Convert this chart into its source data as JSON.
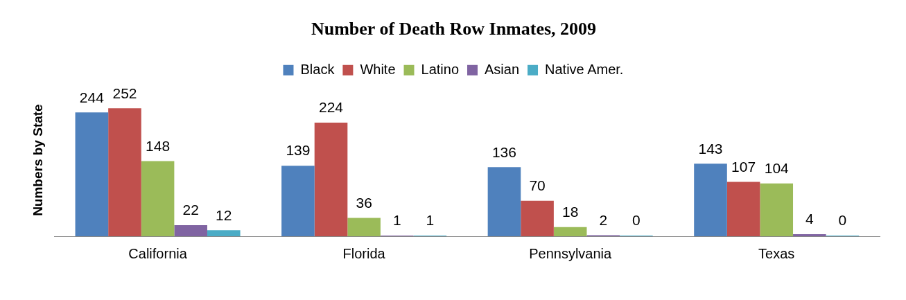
{
  "chart_data": {
    "type": "bar",
    "title": "Number of Death Row Inmates, 2009",
    "ylabel": "Numbers by State",
    "categories": [
      "California",
      "Florida",
      "Pennsylvania",
      "Texas"
    ],
    "series": [
      {
        "name": "Black",
        "color": "#4f81bd",
        "values": [
          244,
          139,
          136,
          143
        ]
      },
      {
        "name": "White",
        "color": "#c0504d",
        "values": [
          252,
          224,
          70,
          107
        ]
      },
      {
        "name": "Latino",
        "color": "#9bbb59",
        "values": [
          148,
          36,
          18,
          104
        ]
      },
      {
        "name": "Asian",
        "color": "#8064a2",
        "values": [
          22,
          1,
          2,
          4
        ]
      },
      {
        "name": "Native Amer.",
        "color": "#4bacc6",
        "values": [
          12,
          1,
          0,
          0
        ]
      }
    ],
    "data_labels": true,
    "legend": "top"
  }
}
